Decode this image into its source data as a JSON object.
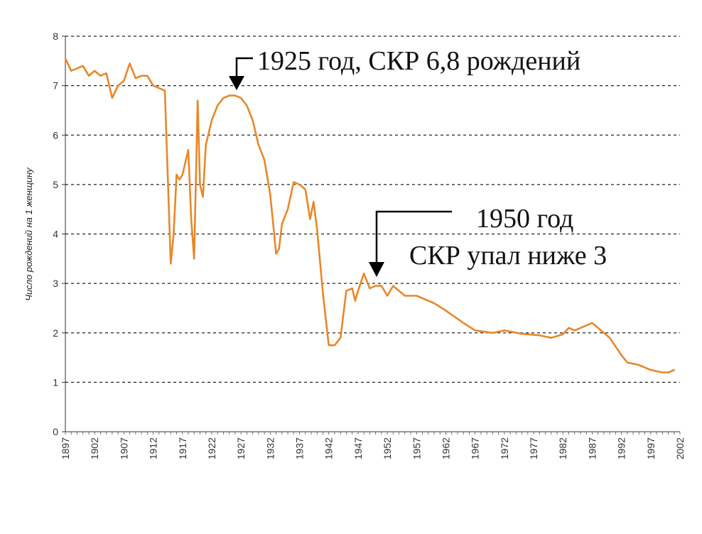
{
  "chart_data": {
    "type": "line",
    "title": "",
    "xlabel": "",
    "ylabel": "Число рождений на 1 женщину",
    "xlim": [
      1897,
      2002
    ],
    "ylim": [
      0,
      8
    ],
    "y_ticks": [
      0,
      1,
      2,
      3,
      4,
      5,
      6,
      7,
      8
    ],
    "x_ticks": [
      1897,
      1902,
      1907,
      1912,
      1917,
      1922,
      1927,
      1932,
      1937,
      1942,
      1947,
      1952,
      1957,
      1962,
      1967,
      1972,
      1977,
      1982,
      1987,
      1992,
      1997,
      2002
    ],
    "grid": "horizontal dashed",
    "line_color": "#E8872A",
    "series": [
      {
        "name": "",
        "points": [
          [
            1897,
            7.55
          ],
          [
            1898,
            7.3
          ],
          [
            1899,
            7.35
          ],
          [
            1900,
            7.4
          ],
          [
            1901,
            7.2
          ],
          [
            1902,
            7.3
          ],
          [
            1903,
            7.2
          ],
          [
            1904,
            7.25
          ],
          [
            1905,
            6.75
          ],
          [
            1906,
            7.0
          ],
          [
            1907,
            7.1
          ],
          [
            1908,
            7.45
          ],
          [
            1909,
            7.15
          ],
          [
            1910,
            7.2
          ],
          [
            1911,
            7.2
          ],
          [
            1912,
            7.0
          ],
          [
            1913,
            6.95
          ],
          [
            1914,
            6.9
          ],
          [
            1915,
            3.4
          ],
          [
            1915.5,
            4.0
          ],
          [
            1916,
            5.2
          ],
          [
            1916.5,
            5.1
          ],
          [
            1917,
            5.2
          ],
          [
            1918,
            5.7
          ],
          [
            1918.5,
            4.3
          ],
          [
            1919,
            3.5
          ],
          [
            1919.6,
            6.7
          ],
          [
            1920,
            5.0
          ],
          [
            1920.5,
            4.75
          ],
          [
            1921,
            5.8
          ],
          [
            1922,
            6.3
          ],
          [
            1923,
            6.6
          ],
          [
            1924,
            6.75
          ],
          [
            1925,
            6.8
          ],
          [
            1926,
            6.8
          ],
          [
            1927,
            6.75
          ],
          [
            1928,
            6.6
          ],
          [
            1929,
            6.3
          ],
          [
            1930,
            5.8
          ],
          [
            1931,
            5.5
          ],
          [
            1932,
            4.8
          ],
          [
            1932.5,
            4.2
          ],
          [
            1933,
            3.6
          ],
          [
            1933.5,
            3.7
          ],
          [
            1934,
            4.2
          ],
          [
            1935,
            4.5
          ],
          [
            1936,
            5.05
          ],
          [
            1937,
            5.0
          ],
          [
            1938,
            4.9
          ],
          [
            1938.8,
            4.3
          ],
          [
            1939.4,
            4.65
          ],
          [
            1940,
            4.1
          ],
          [
            1941,
            2.8
          ],
          [
            1942,
            1.75
          ],
          [
            1943,
            1.75
          ],
          [
            1944,
            1.9
          ],
          [
            1945,
            2.85
          ],
          [
            1946,
            2.9
          ],
          [
            1946.5,
            2.65
          ],
          [
            1947,
            2.85
          ],
          [
            1948,
            3.2
          ],
          [
            1949,
            2.9
          ],
          [
            1950,
            2.95
          ],
          [
            1951,
            2.95
          ],
          [
            1952,
            2.75
          ],
          [
            1953,
            2.95
          ],
          [
            1954,
            2.85
          ],
          [
            1955,
            2.75
          ],
          [
            1957,
            2.75
          ],
          [
            1960,
            2.6
          ],
          [
            1962,
            2.45
          ],
          [
            1965,
            2.2
          ],
          [
            1967,
            2.05
          ],
          [
            1970,
            2.0
          ],
          [
            1972,
            2.05
          ],
          [
            1975,
            1.98
          ],
          [
            1978,
            1.95
          ],
          [
            1980,
            1.9
          ],
          [
            1982,
            1.97
          ],
          [
            1983,
            2.1
          ],
          [
            1984,
            2.05
          ],
          [
            1985,
            2.1
          ],
          [
            1987,
            2.2
          ],
          [
            1988,
            2.1
          ],
          [
            1990,
            1.9
          ],
          [
            1992,
            1.55
          ],
          [
            1993,
            1.4
          ],
          [
            1995,
            1.35
          ],
          [
            1997,
            1.25
          ],
          [
            1999,
            1.2
          ],
          [
            2000,
            1.2
          ],
          [
            2001,
            1.25
          ]
        ]
      }
    ],
    "annotations": [
      {
        "text": "1925 год, СКР 6,8 рождений",
        "x": 1925,
        "y": 6.8
      },
      {
        "text_line1": "1950 год",
        "text_line2": "СКР упал ниже 3",
        "x": 1950,
        "y": 3.15
      }
    ]
  }
}
